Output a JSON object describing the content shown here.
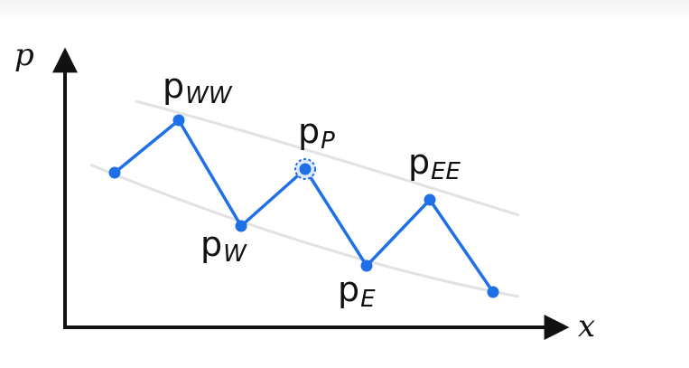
{
  "axes": {
    "x_label": "x",
    "y_label": "p"
  },
  "colors": {
    "line": "#1f6fe6",
    "guide": "#e2e2e2",
    "axis": "#111111"
  },
  "points": [
    {
      "id": "start",
      "base": "",
      "sub": "",
      "highlighted": false
    },
    {
      "id": "ww",
      "base": "p",
      "sub": "WW",
      "highlighted": false
    },
    {
      "id": "w",
      "base": "p",
      "sub": "W",
      "highlighted": false
    },
    {
      "id": "p",
      "base": "p",
      "sub": "P",
      "highlighted": true
    },
    {
      "id": "e",
      "base": "p",
      "sub": "E",
      "highlighted": false
    },
    {
      "id": "ee",
      "base": "p",
      "sub": "EE",
      "highlighted": false
    },
    {
      "id": "end",
      "base": "",
      "sub": "",
      "highlighted": false
    }
  ]
}
